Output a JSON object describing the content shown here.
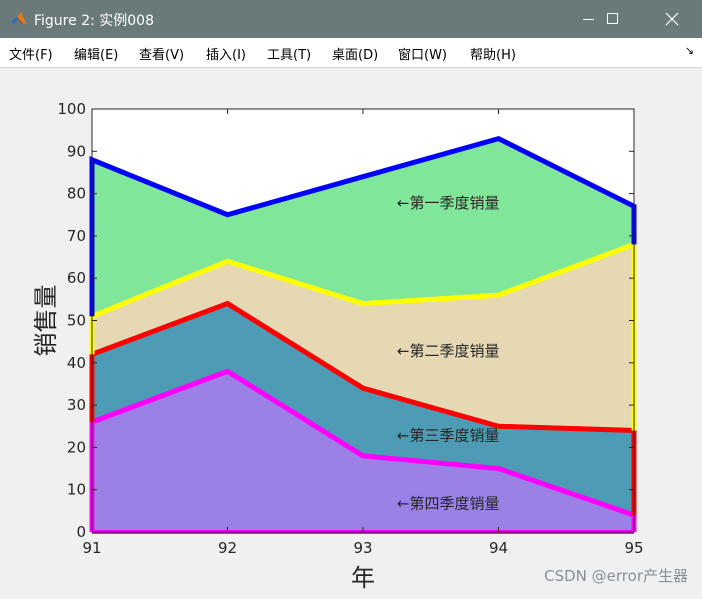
{
  "window": {
    "title": "Figure 2: 实例008",
    "controls": [
      "minimize-icon",
      "maximize-icon",
      "close-icon"
    ]
  },
  "menubar": {
    "items": [
      {
        "label": "文件(F)"
      },
      {
        "label": "编辑(E)"
      },
      {
        "label": "查看(V)"
      },
      {
        "label": "插入(I)"
      },
      {
        "label": "工具(T)"
      },
      {
        "label": "桌面(D)"
      },
      {
        "label": "窗口(W)"
      },
      {
        "label": "帮助(H)"
      }
    ],
    "overflow_icon": "dock-arrow-icon"
  },
  "chart_data": {
    "type": "area",
    "stacked": true,
    "x": [
      91,
      92,
      93,
      94,
      95
    ],
    "xticks": [
      "91",
      "92",
      "93",
      "94",
      "95"
    ],
    "yticks": [
      "0",
      "10",
      "20",
      "30",
      "40",
      "50",
      "60",
      "70",
      "80",
      "90",
      "100"
    ],
    "xlim": [
      91,
      95
    ],
    "ylim": [
      0,
      100
    ],
    "xlabel": "年",
    "ylabel": "销售量",
    "grid": false,
    "series": [
      {
        "values": [
          26,
          38,
          18,
          15,
          4
        ],
        "fill": "#9b80e6",
        "line": "#ff00ff"
      },
      {
        "values": [
          16,
          16,
          16,
          10,
          20
        ],
        "fill": "#4d9bb4",
        "line": "#ff0000"
      },
      {
        "values": [
          9,
          10,
          20,
          31,
          44
        ],
        "fill": "#e6d8b3",
        "line": "#ffff00"
      },
      {
        "values": [
          37,
          11,
          30,
          37,
          9
        ],
        "fill": "#80e699",
        "line": "#0000ff"
      }
    ],
    "annotations": [
      {
        "text": "←第一季度销量",
        "x": 93.25,
        "y": 78
      },
      {
        "text": "←第二季度销量",
        "x": 93.25,
        "y": 43
      },
      {
        "text": "←第三季度销量",
        "x": 93.25,
        "y": 23
      },
      {
        "text": "←第四季度销量",
        "x": 93.25,
        "y": 7
      }
    ]
  },
  "watermark": "CSDN @error产生器"
}
